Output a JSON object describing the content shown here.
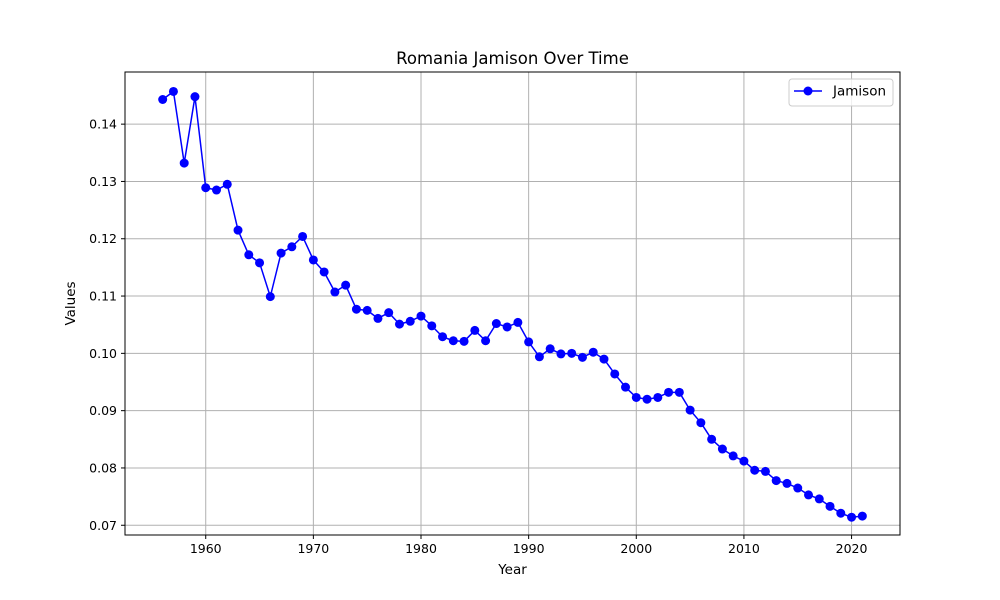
{
  "chart_data": {
    "type": "line",
    "title": "Romania Jamison Over Time",
    "xlabel": "Year",
    "ylabel": "Values",
    "xlim": [
      1952.5,
      2024.5
    ],
    "ylim": [
      0.0683,
      0.1491
    ],
    "xticks": [
      1960,
      1970,
      1980,
      1990,
      2000,
      2010,
      2020
    ],
    "yticks": [
      0.07,
      0.08,
      0.09,
      0.1,
      0.11,
      0.12,
      0.13,
      0.14
    ],
    "yticks_labels": [
      "0.07",
      "0.08",
      "0.09",
      "0.10",
      "0.11",
      "0.12",
      "0.13",
      "0.14"
    ],
    "grid": true,
    "legend_position": "top-right",
    "series": [
      {
        "name": "Jamison",
        "color": "#0000ff",
        "marker": "circle",
        "x": [
          1956,
          1957,
          1958,
          1959,
          1960,
          1961,
          1962,
          1963,
          1964,
          1965,
          1966,
          1967,
          1968,
          1969,
          1970,
          1971,
          1972,
          1973,
          1974,
          1975,
          1976,
          1977,
          1978,
          1979,
          1980,
          1981,
          1982,
          1983,
          1984,
          1985,
          1986,
          1987,
          1988,
          1989,
          1990,
          1991,
          1992,
          1993,
          1994,
          1995,
          1996,
          1997,
          1998,
          1999,
          2000,
          2001,
          2002,
          2003,
          2004,
          2005,
          2006,
          2007,
          2008,
          2009,
          2010,
          2011,
          2012,
          2013,
          2014,
          2015,
          2016,
          2017,
          2018,
          2019,
          2020,
          2021
        ],
        "y": [
          0.1443,
          0.1457,
          0.1332,
          0.1448,
          0.1289,
          0.1285,
          0.1295,
          0.1215,
          0.1172,
          0.1158,
          0.1099,
          0.1175,
          0.1186,
          0.1204,
          0.1163,
          0.1142,
          0.1107,
          0.1119,
          0.1077,
          0.1075,
          0.1061,
          0.1071,
          0.1051,
          0.1056,
          0.1065,
          0.1048,
          0.1029,
          0.1022,
          0.1021,
          0.104,
          0.1022,
          0.1052,
          0.1046,
          0.1054,
          0.102,
          0.0994,
          0.1008,
          0.0999,
          0.1,
          0.0993,
          0.1002,
          0.099,
          0.0964,
          0.0941,
          0.0923,
          0.092,
          0.0923,
          0.0932,
          0.0932,
          0.0901,
          0.0879,
          0.085,
          0.0833,
          0.0821,
          0.0812,
          0.0796,
          0.0794,
          0.0778,
          0.0773,
          0.0765,
          0.0753,
          0.0746,
          0.0733,
          0.0721,
          0.0714,
          0.0716
        ]
      }
    ]
  }
}
